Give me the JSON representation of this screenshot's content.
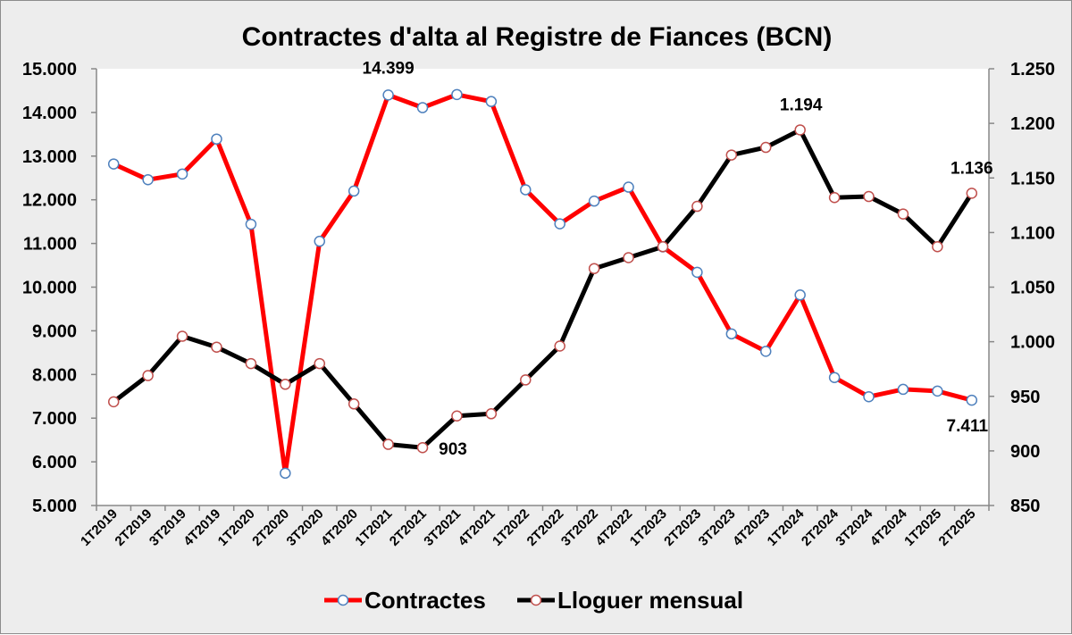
{
  "chart_data": {
    "type": "line",
    "title": "Contractes d'alta al Registre de Fiances (BCN)",
    "categories": [
      "1T2019",
      "2T2019",
      "3T2019",
      "4T2019",
      "1T2020",
      "2T2020",
      "3T2020",
      "4T2020",
      "1T2021",
      "2T2021",
      "3T2021",
      "4T2021",
      "1T2022",
      "2T2022",
      "3T2022",
      "4T2022",
      "1T2023",
      "2T2023",
      "3T2023",
      "4T2023",
      "1T2024",
      "2T2024",
      "3T2024",
      "4T2024",
      "1T2025",
      "2T2025"
    ],
    "y_left": {
      "min": 5000,
      "max": 15000,
      "step": 1000,
      "tick_labels": [
        "5.000",
        "6.000",
        "7.000",
        "8.000",
        "9.000",
        "10.000",
        "11.000",
        "12.000",
        "13.000",
        "14.000",
        "15.000"
      ]
    },
    "y_right": {
      "min": 850,
      "max": 1250,
      "step": 50,
      "tick_labels": [
        "850",
        "900",
        "950",
        "1.000",
        "1.050",
        "1.100",
        "1.150",
        "1.200",
        "1.250"
      ]
    },
    "series": [
      {
        "name": "Contractes",
        "axis": "left",
        "line_color": "#ff0000",
        "marker_stroke": "#4f81bd",
        "marker_fill": "#ffffff",
        "values": [
          12820,
          12460,
          12590,
          13390,
          11440,
          5740,
          11050,
          12200,
          14399,
          14110,
          14410,
          14250,
          12230,
          11450,
          11970,
          12290,
          10920,
          10340,
          8930,
          8530,
          9820,
          7930,
          7490,
          7660,
          7620,
          7411
        ]
      },
      {
        "name": "Lloguer mensual",
        "axis": "right",
        "line_color": "#000000",
        "marker_stroke": "#c0504d",
        "marker_fill": "#ffffff",
        "values": [
          945,
          969,
          1005,
          995,
          980,
          961,
          980,
          943,
          906,
          903,
          932,
          934,
          965,
          996,
          1067,
          1077,
          1087,
          1124,
          1171,
          1178,
          1194,
          1132,
          1133,
          1117,
          1087,
          1136
        ]
      }
    ],
    "annotations": [
      {
        "text": "14.399",
        "series": "Contractes",
        "category": "1T2021"
      },
      {
        "text": "7.411",
        "series": "Contractes",
        "category": "2T2025"
      },
      {
        "text": "903",
        "series": "Lloguer mensual",
        "category": "2T2021"
      },
      {
        "text": "1.194",
        "series": "Lloguer mensual",
        "category": "1T2024"
      },
      {
        "text": "1.136",
        "series": "Lloguer mensual",
        "category": "2T2025"
      }
    ],
    "legend_position": "bottom",
    "grid": false
  }
}
